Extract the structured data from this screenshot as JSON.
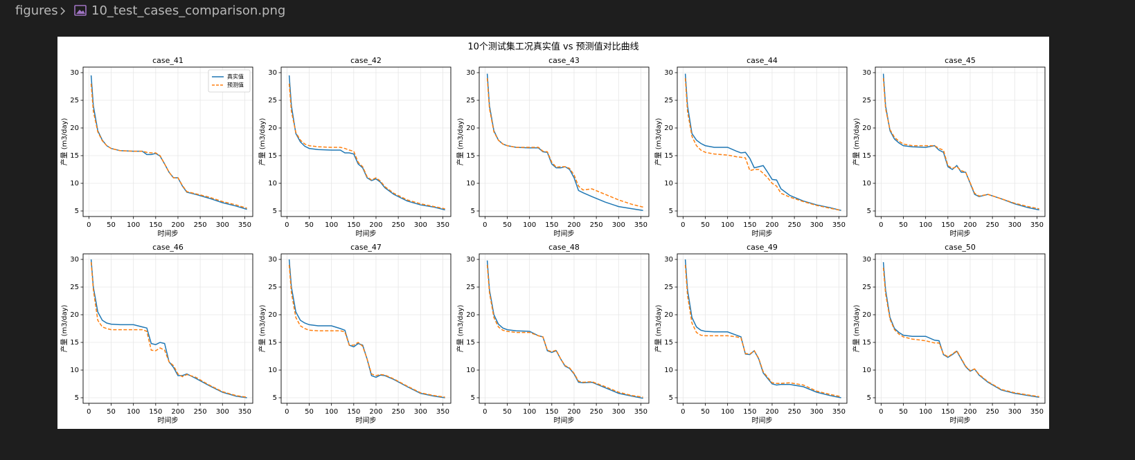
{
  "breadcrumb": [
    "figures",
    "10_test_cases_comparison.png"
  ],
  "figure_title": "10个测试集工况真实值 vs 预测值对比曲线",
  "chart_data": [
    {
      "type": "line",
      "title": "case_41",
      "xlabel": "时间步",
      "ylabel": "产量 (m3/day)",
      "xlim": [
        -13,
        368
      ],
      "ylim": [
        4,
        31
      ],
      "xticks": [
        0,
        50,
        100,
        150,
        200,
        250,
        300,
        350
      ],
      "yticks": [
        5,
        10,
        15,
        20,
        25,
        30
      ],
      "grid": true,
      "legend": "upper right",
      "x": [
        5,
        10,
        20,
        30,
        40,
        50,
        70,
        100,
        120,
        130,
        140,
        150,
        160,
        170,
        180,
        190,
        200,
        210,
        220,
        240,
        270,
        300,
        330,
        355
      ],
      "series": [
        {
          "name": "真实值",
          "color": "#1f77b4",
          "linestyle": "solid",
          "values": [
            29.5,
            24,
            19.5,
            17.8,
            16.8,
            16.3,
            15.9,
            15.8,
            15.8,
            15.2,
            15.2,
            15.4,
            14.9,
            13.5,
            12,
            11,
            11,
            9.5,
            8.4,
            8,
            7.3,
            6.5,
            5.9,
            5.3
          ]
        },
        {
          "name": "预测值",
          "color": "#ff7f0e",
          "linestyle": "dashed",
          "values": [
            28,
            23,
            19.3,
            17.7,
            16.8,
            16.3,
            15.9,
            15.8,
            15.8,
            15.6,
            15.5,
            15.5,
            15,
            13.5,
            12,
            11,
            11,
            9.6,
            8.5,
            8.1,
            7.5,
            6.7,
            6.1,
            5.5
          ]
        }
      ]
    },
    {
      "type": "line",
      "title": "case_42",
      "xlabel": "时间步",
      "ylabel": "产量 (m3/day)",
      "xlim": [
        -13,
        368
      ],
      "ylim": [
        4,
        31
      ],
      "xticks": [
        0,
        50,
        100,
        150,
        200,
        250,
        300,
        350
      ],
      "yticks": [
        5,
        10,
        15,
        20,
        25,
        30
      ],
      "grid": true,
      "x": [
        5,
        10,
        20,
        30,
        40,
        50,
        70,
        100,
        120,
        130,
        140,
        150,
        160,
        170,
        180,
        190,
        200,
        210,
        220,
        240,
        270,
        300,
        330,
        355
      ],
      "series": [
        {
          "color": "#1f77b4",
          "linestyle": "solid",
          "values": [
            29.5,
            24,
            19,
            17.5,
            16.7,
            16.3,
            16.1,
            16,
            16,
            15.5,
            15.5,
            15.3,
            13.5,
            12.8,
            11,
            10.5,
            10.8,
            10.2,
            9.2,
            8,
            6.8,
            6.1,
            5.7,
            5.2
          ]
        },
        {
          "color": "#ff7f0e",
          "linestyle": "dashed",
          "values": [
            28,
            23,
            19.2,
            17.8,
            17.1,
            16.8,
            16.6,
            16.5,
            16.5,
            16.3,
            16,
            15.8,
            13.8,
            13,
            11.2,
            10.6,
            11,
            10.4,
            9.4,
            8.2,
            7,
            6.3,
            5.8,
            5.4
          ]
        }
      ]
    },
    {
      "type": "line",
      "title": "case_43",
      "xlabel": "时间步",
      "ylabel": "产量 (m3/day)",
      "xlim": [
        -13,
        368
      ],
      "ylim": [
        4,
        31
      ],
      "xticks": [
        0,
        50,
        100,
        150,
        200,
        250,
        300,
        350
      ],
      "yticks": [
        5,
        10,
        15,
        20,
        25,
        30
      ],
      "grid": true,
      "x": [
        5,
        10,
        20,
        30,
        40,
        50,
        70,
        100,
        120,
        130,
        140,
        150,
        160,
        170,
        180,
        190,
        200,
        210,
        220,
        240,
        270,
        300,
        330,
        355
      ],
      "series": [
        {
          "color": "#1f77b4",
          "linestyle": "solid",
          "values": [
            29.8,
            24,
            19.5,
            17.8,
            17.1,
            16.8,
            16.5,
            16.4,
            16.4,
            15.7,
            15.6,
            13.5,
            12.8,
            12.8,
            13,
            12.5,
            11,
            8.7,
            8.3,
            7.6,
            6.6,
            5.8,
            5.4,
            5.1
          ]
        },
        {
          "color": "#ff7f0e",
          "linestyle": "dashed",
          "values": [
            29,
            23.5,
            19.3,
            17.8,
            17.1,
            16.8,
            16.5,
            16.5,
            16.5,
            15.8,
            15.7,
            13.8,
            12.9,
            13,
            13,
            12.7,
            11.5,
            9.5,
            8.8,
            9,
            8,
            7,
            6.2,
            5.7
          ]
        }
      ]
    },
    {
      "type": "line",
      "title": "case_44",
      "xlabel": "时间步",
      "ylabel": "产量 (m3/day)",
      "xlim": [
        -13,
        368
      ],
      "ylim": [
        4,
        31
      ],
      "xticks": [
        0,
        50,
        100,
        150,
        200,
        250,
        300,
        350
      ],
      "yticks": [
        5,
        10,
        15,
        20,
        25,
        30
      ],
      "grid": true,
      "x": [
        5,
        10,
        20,
        30,
        40,
        50,
        70,
        100,
        120,
        130,
        140,
        150,
        160,
        170,
        180,
        190,
        200,
        210,
        220,
        240,
        270,
        300,
        330,
        355
      ],
      "series": [
        {
          "color": "#1f77b4",
          "linestyle": "solid",
          "values": [
            29.8,
            24,
            19,
            17.8,
            17.2,
            16.8,
            16.5,
            16.5,
            15.8,
            15.5,
            15.6,
            14.5,
            12.8,
            13,
            13.2,
            12,
            10.7,
            10.6,
            9,
            7.8,
            6.8,
            6.1,
            5.6,
            5.1
          ]
        },
        {
          "color": "#ff7f0e",
          "linestyle": "dashed",
          "values": [
            29,
            23,
            18.5,
            16.8,
            16,
            15.6,
            15.3,
            15.1,
            14.8,
            14.7,
            14.6,
            12.3,
            12.5,
            12.5,
            11.8,
            11,
            10,
            9.5,
            8.2,
            7.5,
            6.7,
            6,
            5.5,
            5.1
          ]
        }
      ]
    },
    {
      "type": "line",
      "title": "case_45",
      "xlabel": "时间步",
      "ylabel": "产量 (m3/day)",
      "xlim": [
        -13,
        368
      ],
      "ylim": [
        4,
        31
      ],
      "xticks": [
        0,
        50,
        100,
        150,
        200,
        250,
        300,
        350
      ],
      "yticks": [
        5,
        10,
        15,
        20,
        25,
        30
      ],
      "grid": true,
      "x": [
        5,
        10,
        20,
        30,
        40,
        50,
        70,
        100,
        120,
        130,
        140,
        150,
        160,
        170,
        180,
        190,
        200,
        210,
        220,
        240,
        270,
        300,
        330,
        355
      ],
      "series": [
        {
          "color": "#1f77b4",
          "linestyle": "solid",
          "values": [
            29.8,
            24,
            19.5,
            18,
            17.3,
            16.8,
            16.6,
            16.5,
            16.8,
            16,
            15.6,
            13,
            12.5,
            13.2,
            12,
            12,
            10,
            8,
            7.6,
            8,
            7.2,
            6.3,
            5.6,
            5.2
          ]
        },
        {
          "color": "#ff7f0e",
          "linestyle": "dashed",
          "values": [
            29,
            23.5,
            19.7,
            18.3,
            17.6,
            17.1,
            16.8,
            16.8,
            16.8,
            16.3,
            16,
            13.2,
            12.7,
            13,
            12.3,
            12,
            10.1,
            8.2,
            7.7,
            8,
            7.2,
            6.4,
            5.8,
            5.4
          ]
        }
      ]
    },
    {
      "type": "line",
      "title": "case_46",
      "xlabel": "时间步",
      "ylabel": "产量 (m3/day)",
      "xlim": [
        -13,
        368
      ],
      "ylim": [
        4,
        31
      ],
      "xticks": [
        0,
        50,
        100,
        150,
        200,
        250,
        300,
        350
      ],
      "yticks": [
        5,
        10,
        15,
        20,
        25,
        30
      ],
      "grid": true,
      "x": [
        5,
        10,
        20,
        30,
        40,
        50,
        70,
        100,
        120,
        130,
        140,
        150,
        160,
        170,
        180,
        190,
        200,
        210,
        220,
        240,
        270,
        300,
        330,
        355
      ],
      "series": [
        {
          "color": "#1f77b4",
          "linestyle": "solid",
          "values": [
            30,
            25,
            20.5,
            19,
            18.5,
            18.3,
            18.2,
            18.2,
            17.8,
            17.6,
            14.8,
            14.6,
            15,
            14.8,
            11.5,
            10.5,
            9,
            9,
            9.3,
            8.5,
            7.2,
            6,
            5.3,
            5
          ]
        },
        {
          "color": "#ff7f0e",
          "linestyle": "dashed",
          "values": [
            29.5,
            24.5,
            19,
            17.8,
            17.5,
            17.3,
            17.3,
            17.3,
            17.3,
            17,
            13.6,
            13.5,
            14,
            13.6,
            11.5,
            10.8,
            9.3,
            8.8,
            9.2,
            8.7,
            7.3,
            6.1,
            5.4,
            5.1
          ]
        }
      ]
    },
    {
      "type": "line",
      "title": "case_47",
      "xlabel": "时间步",
      "ylabel": "产量 (m3/day)",
      "xlim": [
        -13,
        368
      ],
      "ylim": [
        4,
        31
      ],
      "xticks": [
        0,
        50,
        100,
        150,
        200,
        250,
        300,
        350
      ],
      "yticks": [
        5,
        10,
        15,
        20,
        25,
        30
      ],
      "grid": true,
      "x": [
        5,
        10,
        20,
        30,
        40,
        50,
        70,
        100,
        120,
        130,
        140,
        150,
        160,
        170,
        180,
        190,
        200,
        210,
        220,
        240,
        270,
        300,
        330,
        355
      ],
      "series": [
        {
          "color": "#1f77b4",
          "linestyle": "solid",
          "values": [
            30,
            25,
            20.5,
            19,
            18.5,
            18.2,
            18,
            18,
            17.5,
            17.2,
            14.5,
            14.2,
            14.8,
            14.5,
            12,
            9,
            8.7,
            9.1,
            9,
            8.3,
            7,
            5.8,
            5.3,
            5
          ]
        },
        {
          "color": "#ff7f0e",
          "linestyle": "dashed",
          "values": [
            29,
            24,
            19.5,
            18,
            17.5,
            17.2,
            17.1,
            17.1,
            17.1,
            16.9,
            14.5,
            14.5,
            15,
            14.3,
            12,
            9.3,
            9,
            9.2,
            9.1,
            8.4,
            7.1,
            5.9,
            5.4,
            5.1
          ]
        }
      ]
    },
    {
      "type": "line",
      "title": "case_48",
      "xlabel": "时间步",
      "ylabel": "产量 (m3/day)",
      "xlim": [
        -13,
        368
      ],
      "ylim": [
        4,
        31
      ],
      "xticks": [
        0,
        50,
        100,
        150,
        200,
        250,
        300,
        350
      ],
      "yticks": [
        5,
        10,
        15,
        20,
        25,
        30
      ],
      "grid": true,
      "x": [
        5,
        10,
        20,
        30,
        40,
        50,
        70,
        100,
        120,
        130,
        140,
        150,
        160,
        170,
        180,
        190,
        200,
        210,
        220,
        240,
        270,
        300,
        330,
        355
      ],
      "series": [
        {
          "color": "#1f77b4",
          "linestyle": "solid",
          "values": [
            29.8,
            24.5,
            20,
            18.3,
            17.6,
            17.3,
            17.1,
            17,
            16.2,
            16,
            13.5,
            13.2,
            13.5,
            12,
            10.7,
            10.3,
            9.3,
            7.8,
            7.7,
            7.8,
            6.8,
            5.8,
            5.3,
            4.9
          ]
        },
        {
          "color": "#ff7f0e",
          "linestyle": "dashed",
          "values": [
            29,
            24,
            19.5,
            17.8,
            17.2,
            17,
            16.8,
            16.8,
            16.2,
            16,
            13.6,
            13.3,
            13.6,
            12,
            10.8,
            10.4,
            9.4,
            8,
            7.8,
            7.9,
            7,
            6,
            5.4,
            5.1
          ]
        }
      ]
    },
    {
      "type": "line",
      "title": "case_49",
      "xlabel": "时间步",
      "ylabel": "产量 (m3/day)",
      "xlim": [
        -13,
        368
      ],
      "ylim": [
        4,
        31
      ],
      "xticks": [
        0,
        50,
        100,
        150,
        200,
        250,
        300,
        350
      ],
      "yticks": [
        5,
        10,
        15,
        20,
        25,
        30
      ],
      "grid": true,
      "x": [
        5,
        10,
        20,
        30,
        40,
        50,
        70,
        100,
        120,
        130,
        140,
        150,
        160,
        170,
        180,
        190,
        200,
        210,
        220,
        240,
        270,
        300,
        330,
        355
      ],
      "series": [
        {
          "color": "#1f77b4",
          "linestyle": "solid",
          "values": [
            30,
            24.5,
            19.5,
            17.8,
            17.2,
            17,
            16.9,
            16.9,
            16.3,
            16,
            12.9,
            12.8,
            13.5,
            12,
            9.5,
            8.5,
            7.5,
            7.3,
            7.4,
            7.4,
            7,
            6,
            5.4,
            5
          ]
        },
        {
          "color": "#ff7f0e",
          "linestyle": "dashed",
          "values": [
            29,
            23.5,
            18.5,
            16.8,
            16.3,
            16.2,
            16.2,
            16.2,
            16,
            15.8,
            13,
            12.9,
            13.5,
            12.1,
            9.7,
            8.7,
            7.7,
            7.6,
            7.6,
            7.7,
            7.3,
            6.2,
            5.6,
            5.2
          ]
        }
      ]
    },
    {
      "type": "line",
      "title": "case_50",
      "xlabel": "时间步",
      "ylabel": "产量 (m3/day)",
      "xlim": [
        -13,
        368
      ],
      "ylim": [
        4,
        31
      ],
      "xticks": [
        0,
        50,
        100,
        150,
        200,
        250,
        300,
        350
      ],
      "yticks": [
        5,
        10,
        15,
        20,
        25,
        30
      ],
      "grid": true,
      "x": [
        5,
        10,
        20,
        30,
        40,
        50,
        70,
        100,
        120,
        130,
        140,
        150,
        160,
        170,
        180,
        190,
        200,
        210,
        220,
        240,
        270,
        300,
        330,
        355
      ],
      "series": [
        {
          "color": "#1f77b4",
          "linestyle": "solid",
          "values": [
            29.5,
            24.5,
            19.5,
            17.5,
            16.8,
            16.3,
            16.1,
            16.1,
            15.4,
            15.3,
            12.8,
            12.3,
            12.8,
            13.4,
            12,
            10.6,
            9.8,
            10.2,
            9.1,
            7.8,
            6.4,
            5.8,
            5.4,
            5.1
          ]
        },
        {
          "color": "#ff7f0e",
          "linestyle": "dashed",
          "values": [
            28.5,
            23.8,
            19.2,
            17.3,
            16.5,
            16,
            15.6,
            15.3,
            14.9,
            14.9,
            12.9,
            12.4,
            12.9,
            13.5,
            12.1,
            10.7,
            9.9,
            10.2,
            9.2,
            7.9,
            6.5,
            5.9,
            5.5,
            5.2
          ]
        }
      ]
    }
  ]
}
